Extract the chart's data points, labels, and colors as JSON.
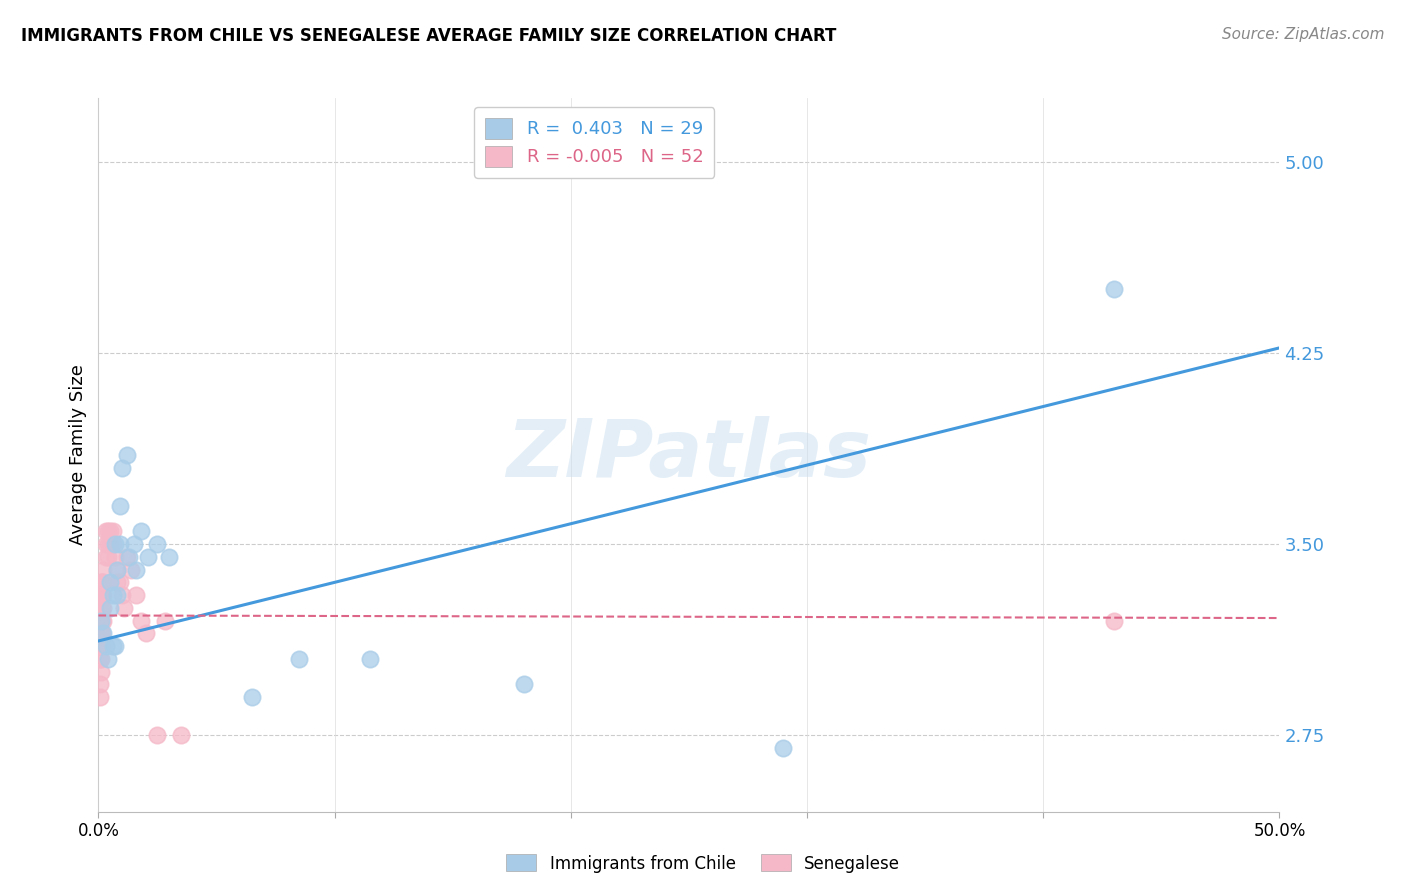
{
  "title": "IMMIGRANTS FROM CHILE VS SENEGALESE AVERAGE FAMILY SIZE CORRELATION CHART",
  "source": "Source: ZipAtlas.com",
  "ylabel": "Average Family Size",
  "xlim": [
    0.0,
    0.5
  ],
  "ylim": [
    2.45,
    5.25
  ],
  "yticks": [
    2.75,
    3.5,
    4.25,
    5.0
  ],
  "ytick_labels": [
    "2.75",
    "3.50",
    "4.25",
    "5.00"
  ],
  "xticks": [
    0.0,
    0.1,
    0.2,
    0.3,
    0.4,
    0.5
  ],
  "xtick_labels": [
    "0.0%",
    "",
    "",
    "",
    "",
    "50.0%"
  ],
  "legend_R_chile": " 0.403",
  "legend_N_chile": "29",
  "legend_R_senegal": "-0.005",
  "legend_N_senegal": "52",
  "chile_color": "#a8cce8",
  "senegal_color": "#f5b8c8",
  "chile_line_color": "#4499dd",
  "senegal_line_color": "#dd6688",
  "watermark": "ZIPatlas",
  "chile_x": [
    0.001,
    0.002,
    0.003,
    0.004,
    0.005,
    0.005,
    0.006,
    0.006,
    0.007,
    0.007,
    0.008,
    0.008,
    0.009,
    0.009,
    0.01,
    0.012,
    0.013,
    0.015,
    0.016,
    0.018,
    0.021,
    0.025,
    0.03,
    0.065,
    0.085,
    0.115,
    0.18,
    0.29,
    0.43
  ],
  "chile_y": [
    3.2,
    3.15,
    3.1,
    3.05,
    3.35,
    3.25,
    3.3,
    3.1,
    3.1,
    3.5,
    3.4,
    3.3,
    3.65,
    3.5,
    3.8,
    3.85,
    3.45,
    3.5,
    3.4,
    3.55,
    3.45,
    3.5,
    3.45,
    2.9,
    3.05,
    3.05,
    2.95,
    2.7,
    4.5
  ],
  "senegal_x": [
    0.0005,
    0.0005,
    0.0005,
    0.0005,
    0.0005,
    0.0005,
    0.0005,
    0.0005,
    0.001,
    0.001,
    0.001,
    0.001,
    0.001,
    0.001,
    0.001,
    0.001,
    0.0015,
    0.0015,
    0.0015,
    0.0015,
    0.0015,
    0.0015,
    0.002,
    0.002,
    0.002,
    0.002,
    0.002,
    0.003,
    0.003,
    0.003,
    0.004,
    0.004,
    0.004,
    0.005,
    0.005,
    0.006,
    0.006,
    0.007,
    0.008,
    0.008,
    0.009,
    0.01,
    0.011,
    0.012,
    0.014,
    0.016,
    0.018,
    0.02,
    0.025,
    0.028,
    0.035,
    0.43
  ],
  "senegal_y": [
    3.3,
    3.25,
    3.2,
    3.15,
    3.1,
    3.05,
    2.95,
    2.9,
    3.35,
    3.3,
    3.25,
    3.2,
    3.15,
    3.1,
    3.05,
    3.0,
    3.35,
    3.3,
    3.25,
    3.2,
    3.15,
    3.1,
    3.4,
    3.35,
    3.3,
    3.25,
    3.2,
    3.55,
    3.5,
    3.45,
    3.55,
    3.5,
    3.45,
    3.55,
    3.5,
    3.55,
    3.5,
    3.45,
    3.4,
    3.35,
    3.35,
    3.3,
    3.25,
    3.45,
    3.4,
    3.3,
    3.2,
    3.15,
    2.75,
    3.2,
    2.75,
    3.2
  ],
  "chile_line_x": [
    0.0,
    0.5
  ],
  "chile_line_y": [
    3.12,
    4.27
  ],
  "senegal_line_x": [
    0.0,
    0.5
  ],
  "senegal_line_y": [
    3.22,
    3.21
  ]
}
